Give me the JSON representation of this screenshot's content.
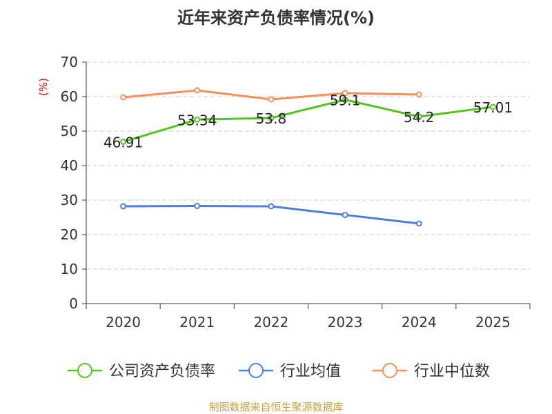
{
  "chart_data": {
    "type": "line",
    "title": "近年来资产负债率情况(%)",
    "ylabel": "(%)",
    "xlabel": "",
    "categories": [
      "2020",
      "2021",
      "2022",
      "2023",
      "2024",
      "2025"
    ],
    "ylim": [
      0,
      70
    ],
    "yticks": [
      0,
      10,
      20,
      30,
      40,
      50,
      60,
      70
    ],
    "grid": true,
    "legend_position": "bottom",
    "series": [
      {
        "name": "公司资产负债率",
        "color": "#52c41a",
        "values": [
          46.91,
          53.34,
          53.8,
          59.1,
          54.2,
          57.01
        ],
        "labels": [
          "46.91",
          "53.34",
          "53.8",
          "59.1",
          "54.2",
          "57.01"
        ]
      },
      {
        "name": "行业均值",
        "color": "#4a7fdc",
        "values": [
          28.2,
          28.3,
          28.2,
          25.7,
          23.2,
          null
        ]
      },
      {
        "name": "行业中位数",
        "color": "#f98e5a",
        "values": [
          59.8,
          61.8,
          59.2,
          61.0,
          60.6,
          null
        ]
      }
    ]
  },
  "source": "制图数据来自恒生聚源数据库"
}
